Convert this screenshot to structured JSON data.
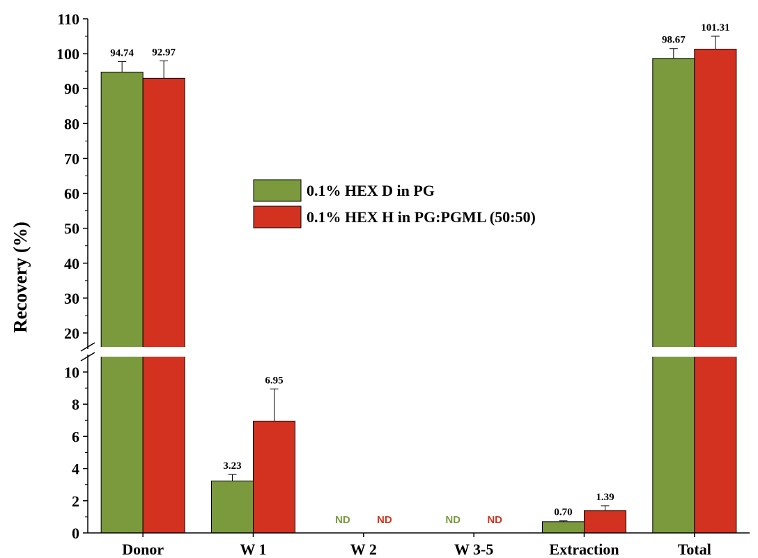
{
  "chart_data": {
    "type": "bar",
    "ylabel": "Recovery (%)",
    "xlabel": "",
    "axis_break": {
      "lower_max": 10,
      "upper_min": 20
    },
    "ylim": [
      0,
      110
    ],
    "categories": [
      "Donor",
      "W 1",
      "W 2",
      "W 3-5",
      "Extraction",
      "Total"
    ],
    "lower_ticks": [
      "0",
      "2",
      "4",
      "6",
      "8",
      "10"
    ],
    "upper_ticks": [
      "20",
      "30",
      "40",
      "50",
      "60",
      "70",
      "80",
      "90",
      "100",
      "110"
    ],
    "series": [
      {
        "name": "0.1% HEX D in PG",
        "color": "#7a9a3d",
        "values": [
          94.74,
          3.23,
          null,
          null,
          0.7,
          98.67
        ],
        "errors": [
          3.0,
          0.4,
          null,
          null,
          0.05,
          2.8
        ],
        "labels": [
          "94.74",
          "3.23",
          "ND",
          "ND",
          "0.70",
          "98.67"
        ]
      },
      {
        "name": "0.1% HEX H in PG:PGML (50:50)",
        "color": "#d43220",
        "values": [
          92.97,
          6.95,
          null,
          null,
          1.39,
          101.31
        ],
        "errors": [
          5.0,
          2.0,
          null,
          null,
          0.3,
          3.7
        ],
        "labels": [
          "92.97",
          "6.95",
          "ND",
          "ND",
          "1.39",
          "101.31"
        ]
      }
    ],
    "legend_position": "center",
    "nd_colors": [
      "#7a9a3d",
      "#d43220"
    ]
  }
}
